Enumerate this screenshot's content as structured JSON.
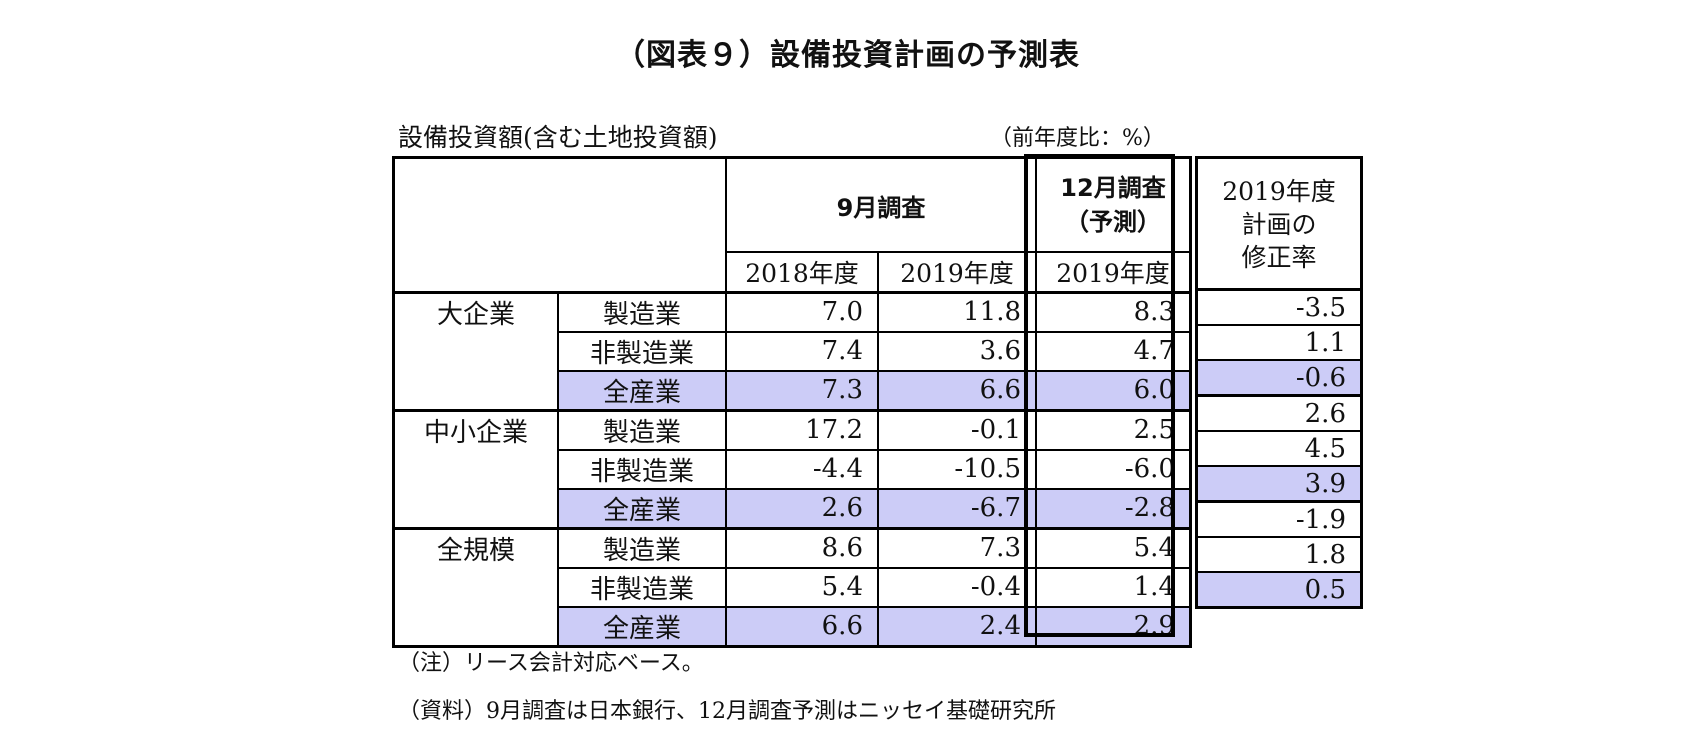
{
  "title": "（図表９）設備投資計画の予測表",
  "subtitle": "設備投資額(含む土地投資額)",
  "unit": "（前年度比：%）",
  "header": {
    "sep_survey": "9月調査",
    "dec_survey_line1": "12月調査",
    "dec_survey_line2": "（予測）",
    "years": [
      "2018年度",
      "2019年度",
      "2019年度"
    ],
    "revision_line1": "2019年度",
    "revision_line2": "計画の",
    "revision_line3": "修正率"
  },
  "groups": [
    {
      "category": "大企業",
      "rows": [
        {
          "industry": "製造業",
          "fy2018_sep": "7.0",
          "fy2019_sep": "11.8",
          "fy2019_dec": "8.3",
          "revision": "-3.5",
          "highlight": false
        },
        {
          "industry": "非製造業",
          "fy2018_sep": "7.4",
          "fy2019_sep": "3.6",
          "fy2019_dec": "4.7",
          "revision": "1.1",
          "highlight": false
        },
        {
          "industry": "全産業",
          "fy2018_sep": "7.3",
          "fy2019_sep": "6.6",
          "fy2019_dec": "6.0",
          "revision": "-0.6",
          "highlight": true
        }
      ]
    },
    {
      "category": "中小企業",
      "rows": [
        {
          "industry": "製造業",
          "fy2018_sep": "17.2",
          "fy2019_sep": "-0.1",
          "fy2019_dec": "2.5",
          "revision": "2.6",
          "highlight": false
        },
        {
          "industry": "非製造業",
          "fy2018_sep": "-4.4",
          "fy2019_sep": "-10.5",
          "fy2019_dec": "-6.0",
          "revision": "4.5",
          "highlight": false
        },
        {
          "industry": "全産業",
          "fy2018_sep": "2.6",
          "fy2019_sep": "-6.7",
          "fy2019_dec": "-2.8",
          "revision": "3.9",
          "highlight": true
        }
      ]
    },
    {
      "category": "全規模",
      "rows": [
        {
          "industry": "製造業",
          "fy2018_sep": "8.6",
          "fy2019_sep": "7.3",
          "fy2019_dec": "5.4",
          "revision": "-1.9",
          "highlight": false
        },
        {
          "industry": "非製造業",
          "fy2018_sep": "5.4",
          "fy2019_sep": "-0.4",
          "fy2019_dec": "1.4",
          "revision": "1.8",
          "highlight": false
        },
        {
          "industry": "全産業",
          "fy2018_sep": "6.6",
          "fy2019_sep": "2.4",
          "fy2019_dec": "2.9",
          "revision": "0.5",
          "highlight": true
        }
      ]
    }
  ],
  "notes": {
    "note": "（注）リース会計対応ベース。",
    "source": "（資料）9月調査は日本銀行、12月調査予測はニッセイ基礎研究所"
  },
  "colors": {
    "highlight": "#ccccf7",
    "border": "#000000"
  }
}
